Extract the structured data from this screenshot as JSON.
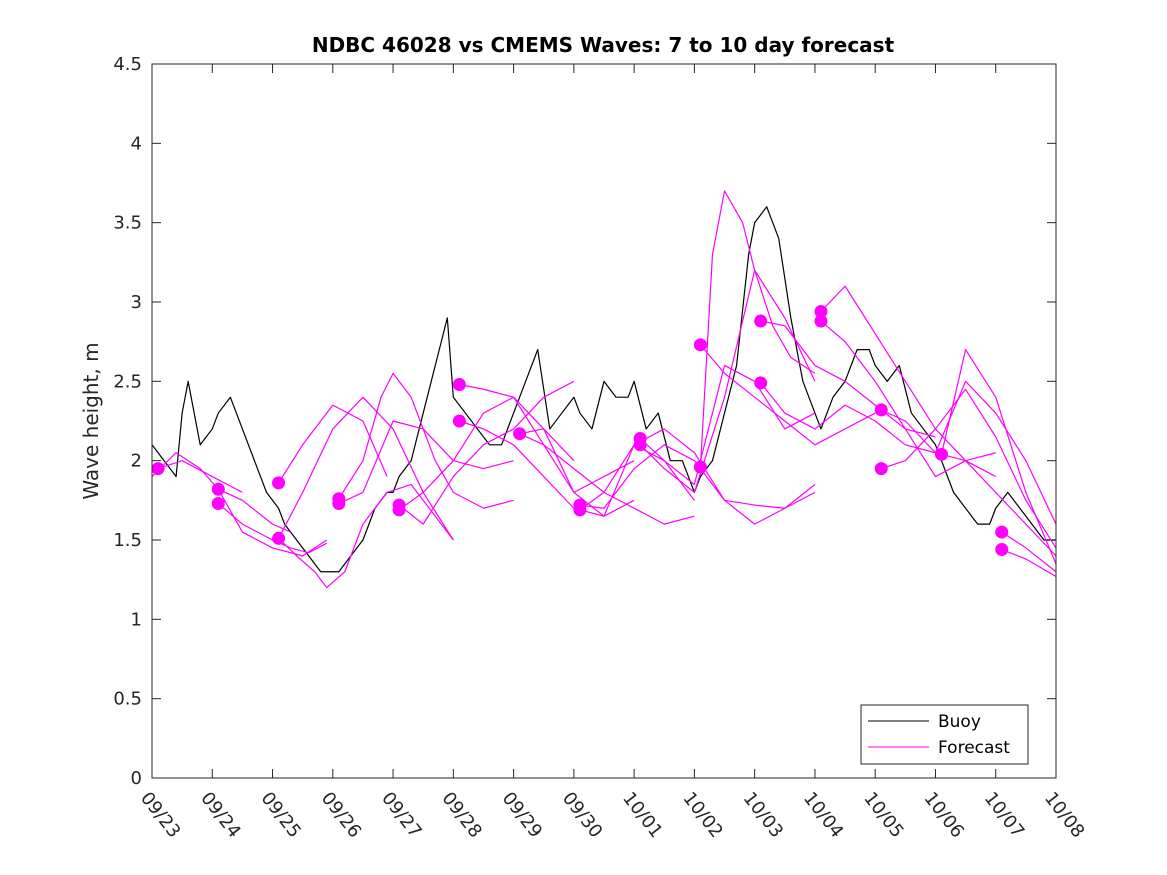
{
  "chart_data": {
    "type": "line",
    "title": "NDBC 46028 vs CMEMS Waves: 7 to 10 day forecast",
    "xlabel": "",
    "ylabel": "Wave height, m",
    "xlim": [
      0,
      15
    ],
    "ylim": [
      0,
      4.5
    ],
    "yticks": [
      0,
      0.5,
      1,
      1.5,
      2,
      2.5,
      3,
      3.5,
      4,
      4.5
    ],
    "ytick_labels": [
      "0",
      "0.5",
      "1",
      "1.5",
      "2",
      "2.5",
      "3",
      "3.5",
      "4",
      "4.5"
    ],
    "xticks": [
      0,
      1,
      2,
      3,
      4,
      5,
      6,
      7,
      8,
      9,
      10,
      11,
      12,
      13,
      14,
      15
    ],
    "xtick_labels": [
      "09/23",
      "09/24",
      "09/25",
      "09/26",
      "09/27",
      "09/28",
      "09/29",
      "09/30",
      "10/01",
      "10/02",
      "10/03",
      "10/04",
      "10/05",
      "10/06",
      "10/07",
      "10/08"
    ],
    "legend": {
      "placement": "bottom-right",
      "entries": [
        "Buoy",
        "Forecast"
      ]
    },
    "colors": {
      "buoy": "#000000",
      "forecast": "#ff00ff"
    },
    "buoy": {
      "name": "Buoy",
      "x": [
        0.0,
        0.2,
        0.4,
        0.5,
        0.6,
        0.8,
        1.0,
        1.1,
        1.3,
        1.5,
        1.7,
        1.9,
        2.1,
        2.2,
        2.4,
        2.6,
        2.8,
        3.0,
        3.1,
        3.3,
        3.5,
        3.7,
        3.9,
        4.0,
        4.1,
        4.3,
        4.5,
        4.7,
        4.9,
        5.0,
        5.2,
        5.4,
        5.6,
        5.8,
        6.0,
        6.2,
        6.4,
        6.6,
        6.8,
        7.0,
        7.1,
        7.3,
        7.5,
        7.7,
        7.9,
        8.0,
        8.2,
        8.4,
        8.6,
        8.8,
        9.0,
        9.1,
        9.3,
        9.5,
        9.7,
        9.9,
        10.0,
        10.2,
        10.4,
        10.6,
        10.8,
        11.0,
        11.1,
        11.3,
        11.5,
        11.7,
        11.9,
        12.0,
        12.2,
        12.4,
        12.6,
        12.8,
        13.0,
        13.1,
        13.3,
        13.5,
        13.7,
        13.9,
        14.0,
        14.2,
        14.4,
        14.6,
        14.8,
        15.0
      ],
      "y": [
        2.1,
        2.0,
        1.9,
        2.3,
        2.5,
        2.1,
        2.2,
        2.3,
        2.4,
        2.2,
        2.0,
        1.8,
        1.7,
        1.6,
        1.5,
        1.4,
        1.3,
        1.3,
        1.3,
        1.4,
        1.5,
        1.7,
        1.8,
        1.8,
        1.9,
        2.0,
        2.3,
        2.6,
        2.9,
        2.4,
        2.3,
        2.2,
        2.1,
        2.1,
        2.3,
        2.5,
        2.7,
        2.2,
        2.3,
        2.4,
        2.3,
        2.2,
        2.5,
        2.4,
        2.4,
        2.5,
        2.2,
        2.3,
        2.0,
        2.0,
        1.8,
        1.9,
        2.0,
        2.3,
        2.6,
        3.3,
        3.5,
        3.6,
        3.4,
        2.9,
        2.5,
        2.3,
        2.2,
        2.4,
        2.5,
        2.7,
        2.7,
        2.6,
        2.5,
        2.6,
        2.3,
        2.2,
        2.1,
        2.0,
        1.8,
        1.7,
        1.6,
        1.6,
        1.7,
        1.8,
        1.7,
        1.6,
        1.5,
        1.5
      ]
    },
    "series": [
      {
        "name": "Forecast",
        "x": [
          0.1,
          0.5,
          1.0,
          1.5
        ],
        "y": [
          1.95,
          2.0,
          1.9,
          1.8
        ]
      },
      {
        "name": "Forecast",
        "x": [
          0.0,
          0.4,
          0.8,
          1.1,
          1.5,
          2.0,
          2.3
        ],
        "y": [
          1.9,
          2.05,
          1.95,
          1.82,
          1.75,
          1.6,
          1.55
        ]
      },
      {
        "name": "Forecast",
        "x": [
          1.1,
          1.5,
          2.0,
          2.5,
          2.9
        ],
        "y": [
          1.82,
          1.55,
          1.45,
          1.4,
          1.5
        ]
      },
      {
        "name": "Forecast",
        "x": [
          1.1,
          1.5,
          2.0,
          2.3,
          2.6,
          2.9
        ],
        "y": [
          1.73,
          1.6,
          1.5,
          1.45,
          1.42,
          1.48
        ]
      },
      {
        "name": "Forecast",
        "x": [
          2.1,
          2.5,
          3.0,
          3.5,
          3.9
        ],
        "y": [
          1.86,
          2.1,
          2.35,
          2.25,
          1.9
        ]
      },
      {
        "name": "Forecast",
        "x": [
          2.1,
          2.4,
          2.7,
          2.9,
          3.2,
          3.5,
          3.9,
          4.3,
          4.8,
          5.0
        ],
        "y": [
          1.51,
          1.4,
          1.3,
          1.2,
          1.3,
          1.6,
          1.8,
          1.85,
          1.6,
          1.5
        ]
      },
      {
        "name": "Forecast",
        "x": [
          2.1,
          2.5,
          3.0,
          3.5,
          4.0,
          4.5,
          5.0
        ],
        "y": [
          1.51,
          1.8,
          2.2,
          2.4,
          2.2,
          1.8,
          1.5
        ]
      },
      {
        "name": "Forecast",
        "x": [
          3.1,
          3.5,
          3.8,
          4.0,
          4.3,
          4.7,
          5.0,
          5.5,
          6.0
        ],
        "y": [
          1.76,
          2.0,
          2.4,
          2.55,
          2.4,
          2.0,
          1.8,
          1.7,
          1.75
        ]
      },
      {
        "name": "Forecast",
        "x": [
          3.1,
          3.5,
          4.0,
          4.5,
          5.0,
          5.5,
          6.0
        ],
        "y": [
          1.73,
          1.8,
          2.25,
          2.2,
          2.0,
          1.95,
          2.0
        ]
      },
      {
        "name": "Forecast",
        "x": [
          4.1,
          4.5,
          5.0,
          5.5,
          6.0,
          6.5,
          7.0
        ],
        "y": [
          1.72,
          1.6,
          1.9,
          2.1,
          2.2,
          2.4,
          2.5
        ]
      },
      {
        "name": "Forecast",
        "x": [
          4.1,
          4.5,
          5.0,
          5.5,
          6.0,
          6.5,
          7.0
        ],
        "y": [
          1.69,
          1.8,
          2.0,
          2.3,
          2.4,
          2.2,
          2.0
        ]
      },
      {
        "name": "Forecast",
        "x": [
          5.1,
          5.5,
          6.0,
          6.5,
          7.0,
          7.5,
          8.0
        ],
        "y": [
          2.48,
          2.45,
          2.4,
          2.1,
          1.8,
          1.9,
          2.0
        ]
      },
      {
        "name": "Forecast",
        "x": [
          5.1,
          5.5,
          6.0,
          6.5,
          7.0,
          7.5,
          8.0
        ],
        "y": [
          2.25,
          2.2,
          2.1,
          1.9,
          1.7,
          1.65,
          1.75
        ]
      },
      {
        "name": "Forecast",
        "x": [
          6.1,
          6.5,
          7.0,
          7.5,
          8.0,
          8.5,
          9.0
        ],
        "y": [
          2.17,
          2.1,
          1.95,
          1.8,
          1.7,
          1.6,
          1.65
        ]
      },
      {
        "name": "Forecast",
        "x": [
          6.1,
          6.5,
          7.0,
          7.5,
          8.0,
          8.5,
          9.0
        ],
        "y": [
          2.17,
          2.2,
          1.8,
          1.65,
          2.1,
          2.0,
          1.75
        ]
      },
      {
        "name": "Forecast",
        "x": [
          7.1,
          7.5,
          8.0,
          8.5,
          9.0,
          9.5,
          10.0,
          10.5,
          11.0
        ],
        "y": [
          1.72,
          1.7,
          1.95,
          2.1,
          2.0,
          1.75,
          1.6,
          1.7,
          1.85
        ]
      },
      {
        "name": "Forecast",
        "x": [
          7.1,
          7.5,
          8.0,
          8.5,
          9.0,
          9.5,
          10.0,
          10.5,
          11.0
        ],
        "y": [
          1.69,
          1.8,
          2.1,
          2.2,
          2.05,
          1.75,
          1.72,
          1.7,
          1.8
        ]
      },
      {
        "name": "Forecast",
        "x": [
          8.1,
          8.5,
          9.0,
          9.5,
          10.0,
          10.5,
          11.0
        ],
        "y": [
          2.14,
          2.0,
          1.85,
          2.6,
          2.5,
          2.2,
          2.3
        ]
      },
      {
        "name": "Forecast",
        "x": [
          8.1,
          8.5,
          9.0,
          9.5,
          10.0,
          10.5,
          11.0
        ],
        "y": [
          2.1,
          1.95,
          1.8,
          2.4,
          3.2,
          2.9,
          2.5
        ]
      },
      {
        "name": "Forecast",
        "x": [
          9.1,
          9.3,
          9.5,
          9.8,
          10.0,
          10.3,
          10.6,
          11.0
        ],
        "y": [
          1.96,
          3.3,
          3.7,
          3.5,
          3.2,
          2.85,
          2.65,
          2.55
        ]
      },
      {
        "name": "Forecast",
        "x": [
          9.1,
          9.5,
          10.0,
          10.5,
          11.0,
          11.5,
          12.0
        ],
        "y": [
          2.73,
          2.55,
          2.4,
          2.25,
          2.1,
          2.2,
          2.3
        ]
      },
      {
        "name": "Forecast",
        "x": [
          10.1,
          10.5,
          11.0,
          11.5,
          12.0,
          12.5,
          13.0
        ],
        "y": [
          2.88,
          2.85,
          2.6,
          2.5,
          2.35,
          2.2,
          2.15
        ]
      },
      {
        "name": "Forecast",
        "x": [
          10.1,
          10.5,
          11.0,
          11.5,
          12.0,
          12.5,
          13.0
        ],
        "y": [
          2.49,
          2.3,
          2.2,
          2.35,
          2.25,
          2.1,
          2.05
        ]
      },
      {
        "name": "Forecast",
        "x": [
          11.1,
          11.5,
          12.0,
          12.5,
          13.0,
          13.5,
          14.0
        ],
        "y": [
          2.94,
          3.1,
          2.8,
          2.5,
          2.2,
          2.0,
          1.9
        ]
      },
      {
        "name": "Forecast",
        "x": [
          11.1,
          11.5,
          12.0,
          12.5,
          13.0,
          13.5,
          14.0
        ],
        "y": [
          2.88,
          2.75,
          2.5,
          2.2,
          1.9,
          2.0,
          2.05
        ]
      },
      {
        "name": "Forecast",
        "x": [
          12.1,
          12.5,
          13.0,
          13.5,
          14.0,
          14.5,
          15.0
        ],
        "y": [
          2.32,
          2.25,
          2.05,
          2.5,
          2.3,
          2.0,
          1.6
        ]
      },
      {
        "name": "Forecast",
        "x": [
          12.1,
          12.5,
          13.0,
          13.5,
          14.0,
          14.5,
          15.0
        ],
        "y": [
          1.95,
          2.0,
          2.2,
          2.45,
          2.15,
          1.75,
          1.45
        ]
      },
      {
        "name": "Forecast",
        "x": [
          13.1,
          13.5,
          14.0,
          14.5,
          15.0
        ],
        "y": [
          2.04,
          2.0,
          1.8,
          1.6,
          1.4
        ]
      },
      {
        "name": "Forecast",
        "x": [
          13.1,
          13.5,
          14.0,
          14.5,
          15.0
        ],
        "y": [
          2.04,
          2.7,
          2.4,
          1.8,
          1.35
        ]
      },
      {
        "name": "Forecast",
        "x": [
          14.1,
          14.5,
          15.0
        ],
        "y": [
          1.55,
          1.45,
          1.3
        ]
      },
      {
        "name": "Forecast",
        "x": [
          14.1,
          14.5,
          15.0
        ],
        "y": [
          1.44,
          1.38,
          1.27
        ]
      }
    ],
    "forecast_start_points": {
      "x": [
        0.1,
        1.1,
        1.1,
        2.1,
        2.1,
        3.1,
        3.1,
        4.1,
        4.1,
        5.1,
        5.1,
        6.1,
        7.1,
        7.1,
        8.1,
        8.1,
        9.1,
        9.1,
        10.1,
        10.1,
        11.1,
        11.1,
        12.1,
        12.1,
        13.1,
        14.1,
        14.1
      ],
      "y": [
        1.95,
        1.82,
        1.73,
        1.86,
        1.51,
        1.76,
        1.73,
        1.72,
        1.69,
        2.48,
        2.25,
        2.17,
        1.72,
        1.69,
        2.14,
        2.1,
        2.73,
        1.96,
        2.88,
        2.49,
        2.94,
        2.88,
        2.32,
        1.95,
        2.04,
        1.55,
        1.44
      ]
    }
  }
}
